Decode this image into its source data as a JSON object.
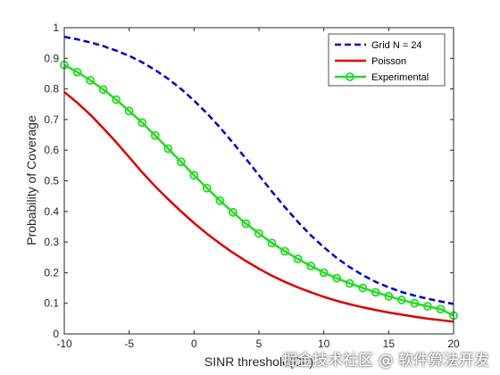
{
  "chart_data": {
    "type": "line",
    "xlabel": "SINR threshold(Db)",
    "ylabel": "Probability of Coverage",
    "xlim": [
      -10,
      20
    ],
    "ylim": [
      0,
      1
    ],
    "xticks": [
      -10,
      -5,
      0,
      5,
      10,
      15,
      20
    ],
    "yticks": [
      0,
      0.1,
      0.2,
      0.3,
      0.4,
      0.5,
      0.6,
      0.7,
      0.8,
      0.9,
      1
    ],
    "legend_position": "top-right",
    "grid": false,
    "series": [
      {
        "name": "Grid N = 24",
        "color": "#0000CC",
        "style": "dashed",
        "marker": "none",
        "x": [
          -10,
          -9,
          -8,
          -7,
          -6,
          -5,
          -4,
          -3,
          -2,
          -1,
          0,
          1,
          2,
          3,
          4,
          5,
          6,
          7,
          8,
          9,
          10,
          11,
          12,
          13,
          14,
          15,
          16,
          17,
          18,
          19,
          20
        ],
        "y": [
          0.97,
          0.962,
          0.952,
          0.94,
          0.925,
          0.908,
          0.887,
          0.862,
          0.833,
          0.8,
          0.762,
          0.72,
          0.674,
          0.624,
          0.572,
          0.518,
          0.465,
          0.414,
          0.366,
          0.322,
          0.283,
          0.248,
          0.218,
          0.192,
          0.17,
          0.152,
          0.137,
          0.125,
          0.115,
          0.106,
          0.098
        ]
      },
      {
        "name": "Poisson",
        "color": "#DD0000",
        "style": "solid",
        "marker": "none",
        "x": [
          -10,
          -9,
          -8,
          -7,
          -6,
          -5,
          -4,
          -3,
          -2,
          -1,
          0,
          1,
          2,
          3,
          4,
          5,
          6,
          7,
          8,
          9,
          10,
          11,
          12,
          13,
          14,
          15,
          16,
          17,
          18,
          19,
          20
        ],
        "y": [
          0.79,
          0.755,
          0.716,
          0.672,
          0.626,
          0.577,
          0.528,
          0.482,
          0.44,
          0.4,
          0.362,
          0.327,
          0.295,
          0.265,
          0.238,
          0.213,
          0.19,
          0.17,
          0.152,
          0.136,
          0.121,
          0.108,
          0.097,
          0.087,
          0.078,
          0.07,
          0.063,
          0.056,
          0.05,
          0.045,
          0.04
        ]
      },
      {
        "name": "Experimental",
        "color": "#22DD22",
        "style": "solid",
        "marker": "circle",
        "x": [
          -10,
          -9,
          -8,
          -7,
          -6,
          -5,
          -4,
          -3,
          -2,
          -1,
          0,
          1,
          2,
          3,
          4,
          5,
          6,
          7,
          8,
          9,
          10,
          11,
          12,
          13,
          14,
          15,
          16,
          17,
          18,
          19,
          20
        ],
        "y": [
          0.878,
          0.855,
          0.828,
          0.798,
          0.765,
          0.728,
          0.69,
          0.648,
          0.605,
          0.562,
          0.518,
          0.476,
          0.435,
          0.397,
          0.36,
          0.328,
          0.297,
          0.27,
          0.245,
          0.222,
          0.2,
          0.182,
          0.165,
          0.15,
          0.136,
          0.123,
          0.111,
          0.1,
          0.09,
          0.081,
          0.06
        ]
      }
    ]
  },
  "watermark": "掘金技术社区 @ 软件算法开发"
}
